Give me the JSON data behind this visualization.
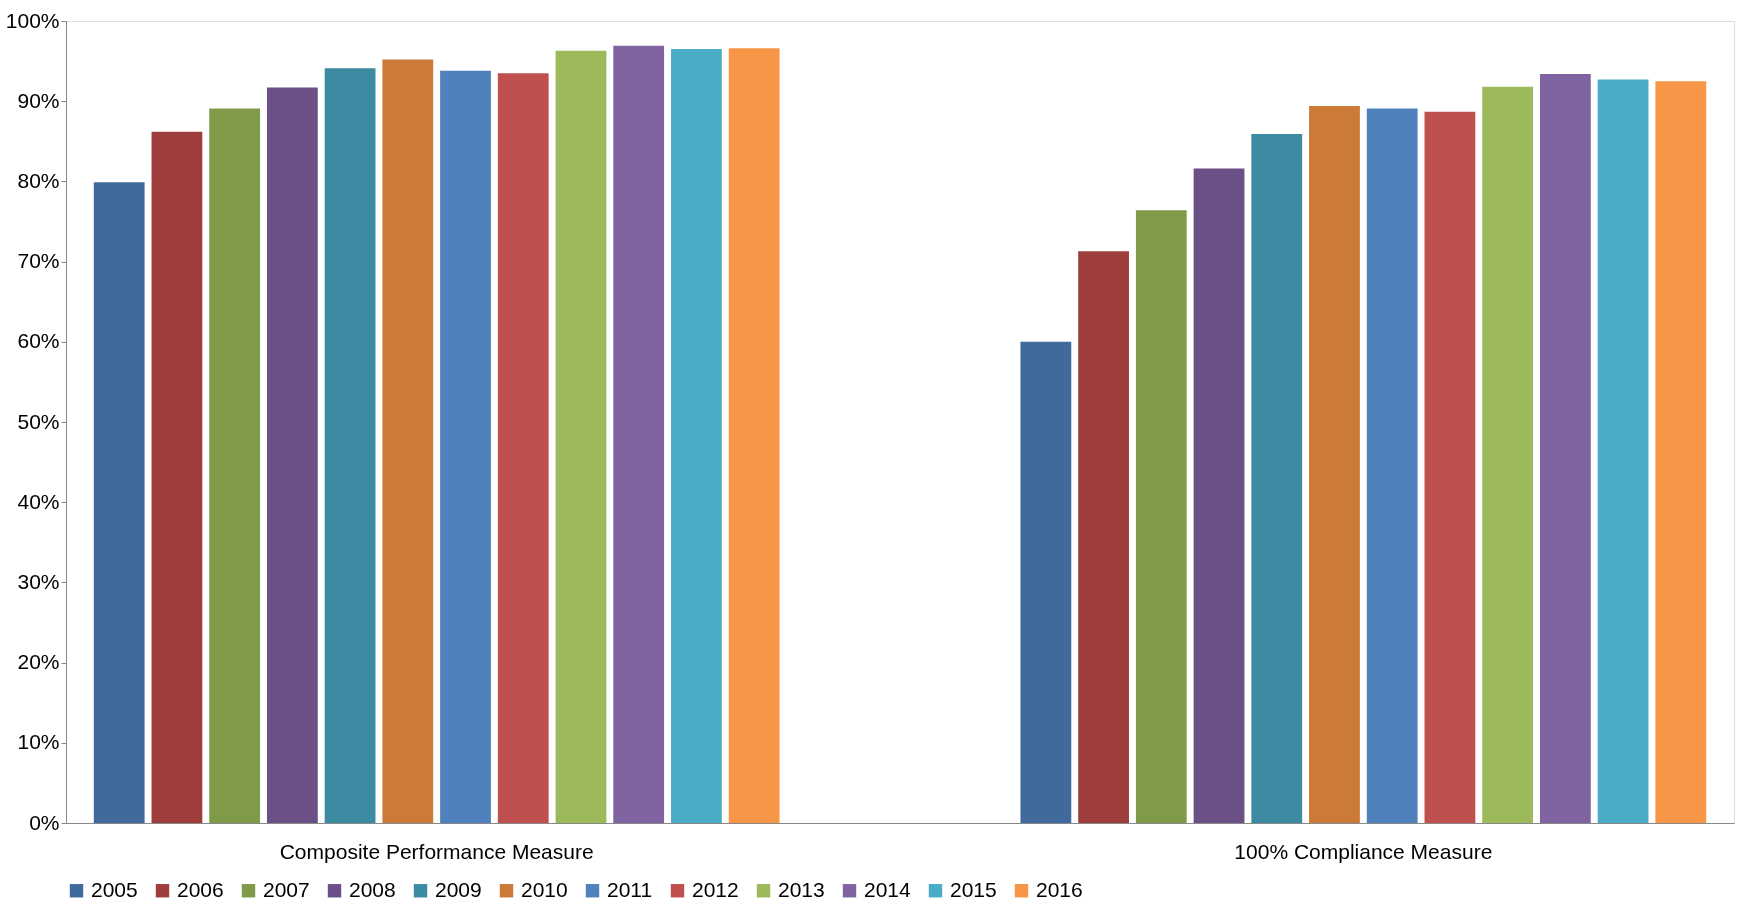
{
  "chart_data": {
    "type": "bar",
    "categories": [
      "Composite Performance Measure",
      "100% Compliance Measure"
    ],
    "series": [
      {
        "name": "2005",
        "color": "#3f6a9b",
        "values": [
          79.9,
          60.0
        ]
      },
      {
        "name": "2006",
        "color": "#9e3f3d",
        "values": [
          86.2,
          71.3
        ]
      },
      {
        "name": "2007",
        "color": "#7f9a48",
        "values": [
          89.1,
          76.4
        ]
      },
      {
        "name": "2008",
        "color": "#6a5087",
        "values": [
          91.7,
          81.6
        ]
      },
      {
        "name": "2009",
        "color": "#3c8ba2",
        "values": [
          94.1,
          85.9
        ]
      },
      {
        "name": "2010",
        "color": "#cb7a37",
        "values": [
          95.2,
          89.4
        ]
      },
      {
        "name": "2011",
        "color": "#4f81bc",
        "values": [
          93.8,
          89.1
        ]
      },
      {
        "name": "2012",
        "color": "#c0504e",
        "values": [
          93.5,
          88.7
        ]
      },
      {
        "name": "2013",
        "color": "#9cba59",
        "values": [
          96.3,
          91.8
        ]
      },
      {
        "name": "2014",
        "color": "#8064a1",
        "values": [
          96.9,
          93.4
        ]
      },
      {
        "name": "2015",
        "color": "#4aacc6",
        "values": [
          96.5,
          92.7
        ]
      },
      {
        "name": "2016",
        "color": "#f79646",
        "values": [
          96.6,
          92.5
        ]
      }
    ],
    "ylim": [
      0,
      100
    ],
    "yticks": [
      {
        "value": 0,
        "label": "0%"
      },
      {
        "value": 10,
        "label": "10%"
      },
      {
        "value": 20,
        "label": "20%"
      },
      {
        "value": 30,
        "label": "30%"
      },
      {
        "value": 40,
        "label": "40%"
      },
      {
        "value": 50,
        "label": "50%"
      },
      {
        "value": 60,
        "label": "60%"
      },
      {
        "value": 70,
        "label": "70%"
      },
      {
        "value": 80,
        "label": "80%"
      },
      {
        "value": 90,
        "label": "90%"
      },
      {
        "value": 100,
        "label": "100%"
      }
    ],
    "grid": false,
    "legend": "bottom"
  }
}
